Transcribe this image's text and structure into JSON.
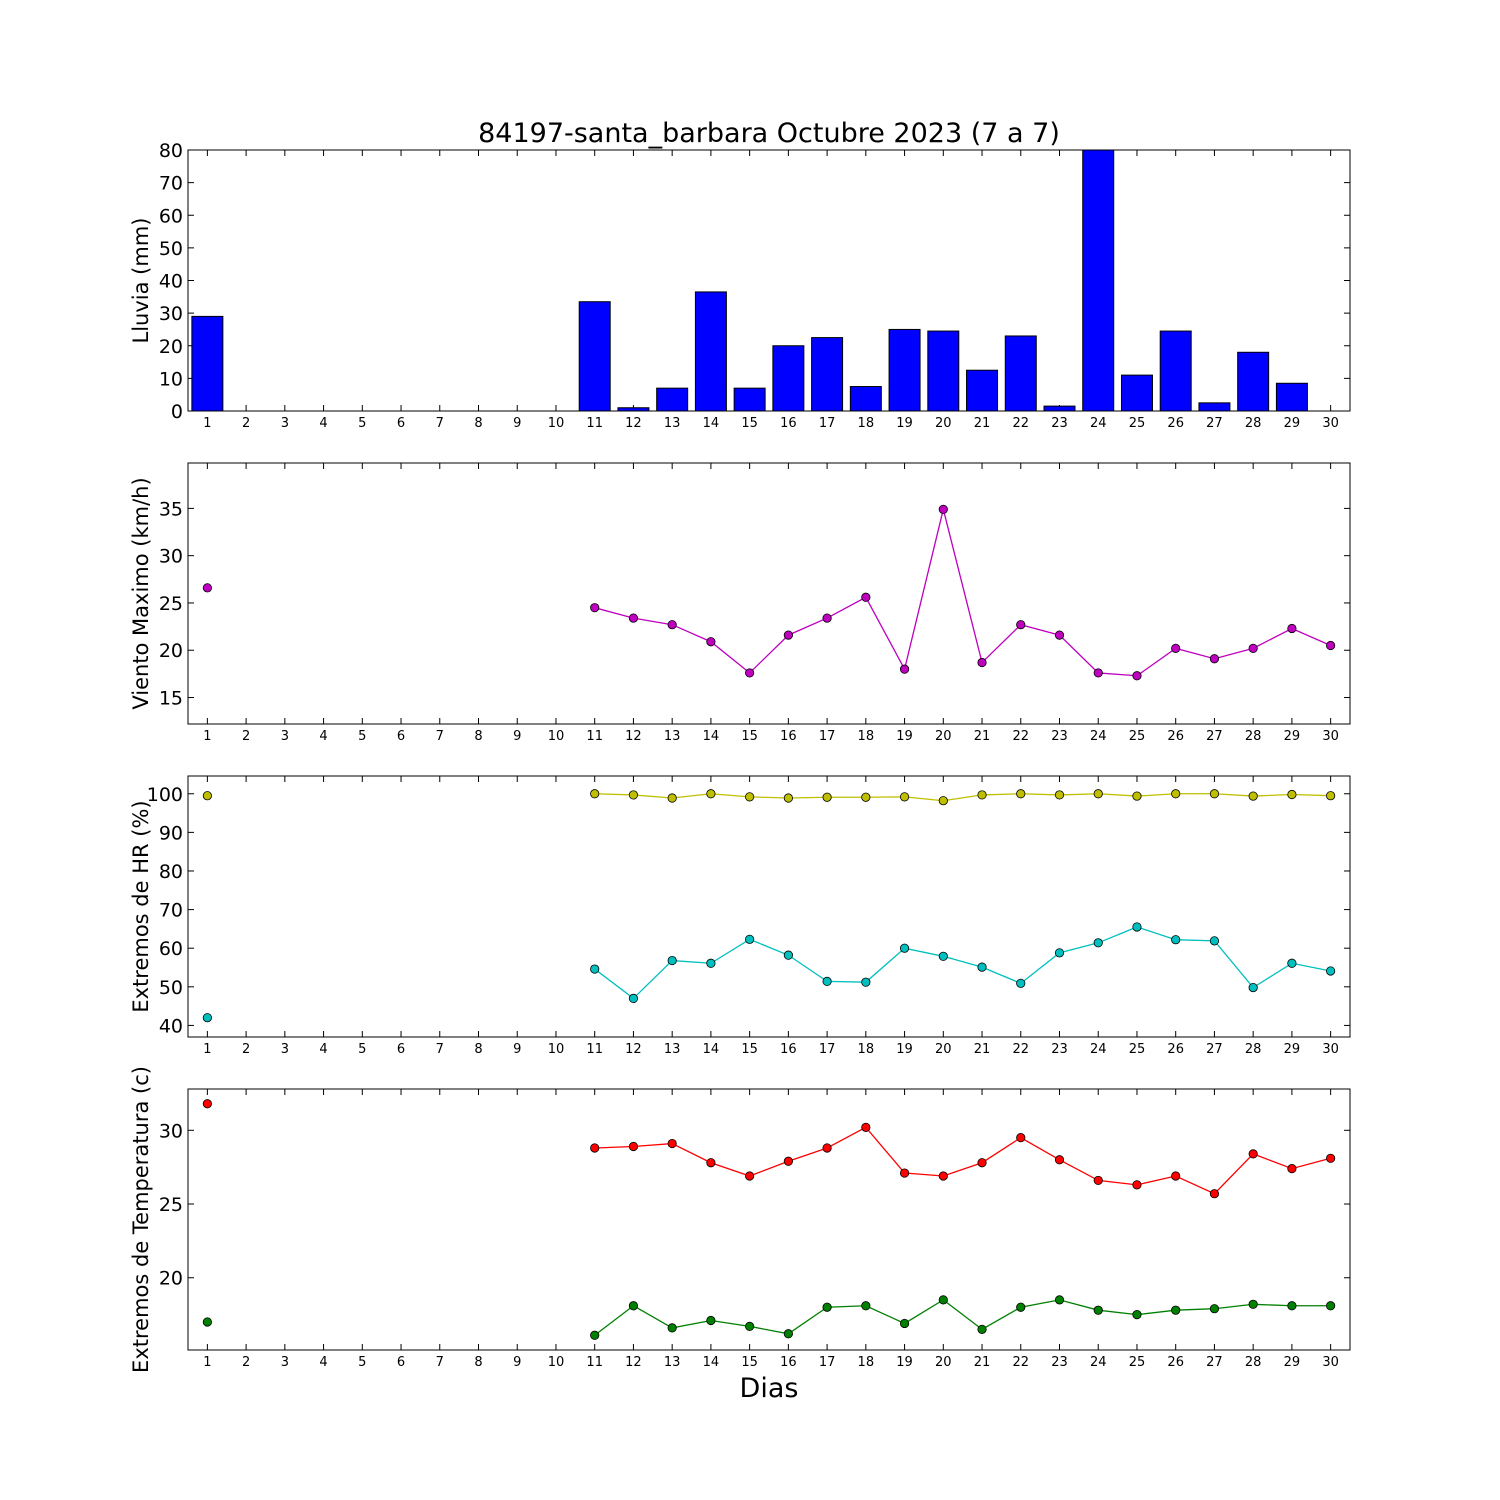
{
  "title": "84197-santa_barbara Octubre 2023  (7 a 7)",
  "xlabel": "Dias",
  "chart_data": [
    {
      "type": "bar",
      "ylabel": "Lluvia (mm)",
      "x": [
        1,
        2,
        3,
        4,
        5,
        6,
        7,
        8,
        9,
        10,
        11,
        12,
        13,
        14,
        15,
        16,
        17,
        18,
        19,
        20,
        21,
        22,
        23,
        24,
        25,
        26,
        27,
        28,
        29,
        30
      ],
      "xlim": [
        0.5,
        30.5
      ],
      "ylim": [
        0,
        80
      ],
      "yticks": [
        0,
        10,
        20,
        30,
        40,
        50,
        60,
        70,
        80
      ],
      "series": [
        {
          "color": "#0000ff",
          "values": [
            29,
            0,
            0,
            0,
            0,
            0,
            0,
            0,
            0,
            0,
            33.5,
            1,
            7,
            36.5,
            7,
            20,
            22.5,
            7.5,
            25,
            24.5,
            12.5,
            23,
            1.5,
            80,
            11,
            24.5,
            2.5,
            18,
            8.5,
            0
          ]
        }
      ]
    },
    {
      "type": "line",
      "ylabel": "Viento Maximo (km/h)",
      "x": [
        1,
        2,
        3,
        4,
        5,
        6,
        7,
        8,
        9,
        10,
        11,
        12,
        13,
        14,
        15,
        16,
        17,
        18,
        19,
        20,
        21,
        22,
        23,
        24,
        25,
        26,
        27,
        28,
        29,
        30
      ],
      "xlim": [
        0.5,
        30.5
      ],
      "ylim": [
        12.2,
        39.8
      ],
      "yticks": [
        15,
        20,
        25,
        30,
        35
      ],
      "series": [
        {
          "color": "#bf00bf",
          "values": [
            26.6,
            null,
            null,
            null,
            null,
            null,
            null,
            null,
            null,
            null,
            24.5,
            23.4,
            22.7,
            20.9,
            17.6,
            21.6,
            23.4,
            25.6,
            18,
            34.9,
            18.7,
            22.7,
            21.6,
            17.6,
            17.3,
            20.2,
            19.1,
            20.2,
            22.3,
            20.5
          ]
        }
      ]
    },
    {
      "type": "line",
      "ylabel": "Extremos de HR (%)",
      "x": [
        1,
        2,
        3,
        4,
        5,
        6,
        7,
        8,
        9,
        10,
        11,
        12,
        13,
        14,
        15,
        16,
        17,
        18,
        19,
        20,
        21,
        22,
        23,
        24,
        25,
        26,
        27,
        28,
        29,
        30
      ],
      "xlim": [
        0.5,
        30.5
      ],
      "ylim": [
        37,
        104.6
      ],
      "yticks": [
        40,
        50,
        60,
        70,
        80,
        90,
        100
      ],
      "series": [
        {
          "color": "#bfbf00",
          "values": [
            99.5,
            null,
            null,
            null,
            null,
            null,
            null,
            null,
            null,
            null,
            100,
            99.7,
            98.9,
            100,
            99.2,
            98.9,
            99.1,
            99.1,
            99.2,
            98.2,
            99.7,
            100,
            99.7,
            100,
            99.4,
            100,
            100,
            99.4,
            99.8,
            99.5
          ]
        },
        {
          "color": "#00bfbf",
          "values": [
            42,
            null,
            null,
            null,
            null,
            null,
            null,
            null,
            null,
            null,
            54.6,
            47,
            56.8,
            56.1,
            62.3,
            58.2,
            51.4,
            51.2,
            60,
            57.9,
            55.1,
            50.9,
            58.8,
            61.4,
            65.5,
            62.2,
            61.9,
            49.8,
            56.1,
            54.1
          ]
        }
      ]
    },
    {
      "type": "line",
      "ylabel": "Extremos de Temperatura (c)",
      "x": [
        1,
        2,
        3,
        4,
        5,
        6,
        7,
        8,
        9,
        10,
        11,
        12,
        13,
        14,
        15,
        16,
        17,
        18,
        19,
        20,
        21,
        22,
        23,
        24,
        25,
        26,
        27,
        28,
        29,
        30
      ],
      "xlim": [
        0.5,
        30.5
      ],
      "ylim": [
        15.1,
        32.8
      ],
      "yticks": [
        20,
        25,
        30
      ],
      "series": [
        {
          "color": "#ff0000",
          "values": [
            31.8,
            null,
            null,
            null,
            null,
            null,
            null,
            null,
            null,
            null,
            28.8,
            28.9,
            29.1,
            27.8,
            26.9,
            27.9,
            28.8,
            30.2,
            27.1,
            26.9,
            27.8,
            29.5,
            28,
            26.6,
            26.3,
            26.9,
            25.7,
            28.4,
            27.4,
            28.1
          ]
        },
        {
          "color": "#008000",
          "values": [
            17,
            null,
            null,
            null,
            null,
            null,
            null,
            null,
            null,
            null,
            16.1,
            18.1,
            16.6,
            17.1,
            16.7,
            16.2,
            18,
            18.1,
            16.9,
            18.5,
            16.5,
            18,
            18.5,
            17.8,
            17.5,
            17.8,
            17.9,
            18.2,
            18.1,
            18.1
          ]
        }
      ]
    }
  ]
}
